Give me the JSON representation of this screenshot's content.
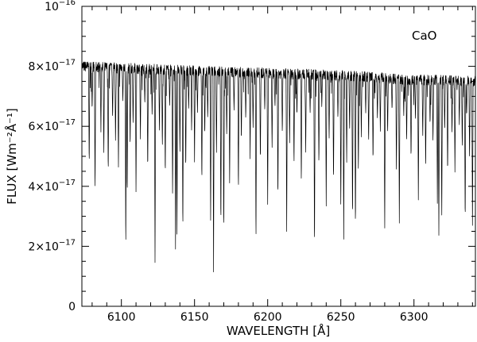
{
  "chart_data": {
    "type": "line",
    "title": "",
    "annotation": "CaO",
    "xlabel": "WAVELENGTH [Å]",
    "ylabel": "FLUX [Wm⁻²Å⁻¹]",
    "xlim": [
      6073,
      6342
    ],
    "ylim": [
      0,
      1e-16
    ],
    "x_ticks": [
      6100,
      6150,
      6200,
      6250,
      6300
    ],
    "x_tick_labels": [
      "6100",
      "6150",
      "6200",
      "6250",
      "6300"
    ],
    "y_ticks": [
      {
        "value": 0,
        "mantissa": "0",
        "exponent": ""
      },
      {
        "value": 2e-17,
        "mantissa": "2×10",
        "exponent": "−17"
      },
      {
        "value": 4e-17,
        "mantissa": "4×10",
        "exponent": "−17"
      },
      {
        "value": 6e-17,
        "mantissa": "6×10",
        "exponent": "−17"
      },
      {
        "value": 8e-17,
        "mantissa": "8×10",
        "exponent": "−17"
      },
      {
        "value": 1e-16,
        "mantissa": "10",
        "exponent": "−16"
      }
    ],
    "grid": false,
    "series": [
      {
        "line_color": "#000000",
        "continuum": [
          [
            6073,
            8e-17
          ],
          [
            6150,
            7.85e-17
          ],
          [
            6250,
            7.7e-17
          ],
          [
            6300,
            7.55e-17
          ],
          [
            6342,
            7.5e-17
          ]
        ],
        "absorption_lines": [
          [
            6078,
            4.6e-17
          ],
          [
            6080,
            6.5e-17
          ],
          [
            6082,
            3.7e-17
          ],
          [
            6086,
            5.8e-17
          ],
          [
            6088,
            5e-17
          ],
          [
            6091,
            4.3e-17
          ],
          [
            6094,
            6.2e-17
          ],
          [
            6096,
            5.4e-17
          ],
          [
            6098,
            4.6e-17
          ],
          [
            6101,
            6.8e-17
          ],
          [
            6103,
            1.7e-17
          ],
          [
            6104,
            3.5e-17
          ],
          [
            6106,
            5.2e-17
          ],
          [
            6108,
            6e-17
          ],
          [
            6110,
            3.7e-17
          ],
          [
            6113,
            5.5e-17
          ],
          [
            6116,
            6.7e-17
          ],
          [
            6118,
            4.4e-17
          ],
          [
            6121,
            6.3e-17
          ],
          [
            6123,
            1.3e-17
          ],
          [
            6126,
            5.8e-17
          ],
          [
            6128,
            5.2e-17
          ],
          [
            6130,
            4.2e-17
          ],
          [
            6133,
            6.6e-17
          ],
          [
            6135,
            3.6e-17
          ],
          [
            6137,
            1.9e-17
          ],
          [
            6138,
            2.3e-17
          ],
          [
            6140,
            5e-17
          ],
          [
            6142,
            2.3e-17
          ],
          [
            6144,
            4.4e-17
          ],
          [
            6146,
            6.5e-17
          ],
          [
            6148,
            5.8e-17
          ],
          [
            6150,
            4.8e-17
          ],
          [
            6152,
            6.4e-17
          ],
          [
            6155,
            4e-17
          ],
          [
            6157,
            5.6e-17
          ],
          [
            6159,
            6.2e-17
          ],
          [
            6161,
            2.7e-17
          ],
          [
            6163,
            1.1e-17
          ],
          [
            6165,
            5e-17
          ],
          [
            6168,
            2.5e-17
          ],
          [
            6170,
            2.2e-17
          ],
          [
            6172,
            5.6e-17
          ],
          [
            6174,
            4e-17
          ],
          [
            6177,
            6.5e-17
          ],
          [
            6180,
            3.7e-17
          ],
          [
            6182,
            5.4e-17
          ],
          [
            6185,
            6.2e-17
          ],
          [
            6188,
            4.9e-17
          ],
          [
            6190,
            5.9e-17
          ],
          [
            6192,
            2e-17
          ],
          [
            6195,
            4.7e-17
          ],
          [
            6198,
            6.5e-17
          ],
          [
            6200,
            3.3e-17
          ],
          [
            6203,
            5.2e-17
          ],
          [
            6205,
            6.6e-17
          ],
          [
            6207,
            3.4e-17
          ],
          [
            6210,
            5.7e-17
          ],
          [
            6213,
            2.4e-17
          ],
          [
            6215,
            5.4e-17
          ],
          [
            6218,
            4.6e-17
          ],
          [
            6220,
            6.3e-17
          ],
          [
            6223,
            4e-17
          ],
          [
            6226,
            5.1e-17
          ],
          [
            6229,
            6.4e-17
          ],
          [
            6232,
            1.7e-17
          ],
          [
            6235,
            4.6e-17
          ],
          [
            6237,
            6.6e-17
          ],
          [
            6240,
            3.3e-17
          ],
          [
            6242,
            5.5e-17
          ],
          [
            6245,
            4e-17
          ],
          [
            6248,
            6.2e-17
          ],
          [
            6250,
            3.2e-17
          ],
          [
            6252,
            2.2e-17
          ],
          [
            6254,
            4.7e-17
          ],
          [
            6256,
            5.8e-17
          ],
          [
            6258,
            2.7e-17
          ],
          [
            6260,
            2.4e-17
          ],
          [
            6262,
            4.4e-17
          ],
          [
            6264,
            5.6e-17
          ],
          [
            6267,
            6.4e-17
          ],
          [
            6269,
            5.4e-17
          ],
          [
            6272,
            4.7e-17
          ],
          [
            6275,
            6.2e-17
          ],
          [
            6277,
            5.8e-17
          ],
          [
            6280,
            2.4e-17
          ],
          [
            6282,
            5.7e-17
          ],
          [
            6285,
            6.5e-17
          ],
          [
            6288,
            4.4e-17
          ],
          [
            6290,
            2.7e-17
          ],
          [
            6293,
            6.3e-17
          ],
          [
            6295,
            5.4e-17
          ],
          [
            6298,
            4.8e-17
          ],
          [
            6301,
            6.2e-17
          ],
          [
            6303,
            3.5e-17
          ],
          [
            6306,
            5.6e-17
          ],
          [
            6308,
            4.5e-17
          ],
          [
            6311,
            6e-17
          ],
          [
            6313,
            5.4e-17
          ],
          [
            6316,
            3.4e-17
          ],
          [
            6317,
            2.3e-17
          ],
          [
            6319,
            2.8e-17
          ],
          [
            6321,
            5.8e-17
          ],
          [
            6323,
            4.3e-17
          ],
          [
            6326,
            5.7e-17
          ],
          [
            6328,
            4.4e-17
          ],
          [
            6331,
            6e-17
          ],
          [
            6333,
            5.2e-17
          ],
          [
            6335,
            2.6e-17
          ],
          [
            6336,
            6.3e-17
          ],
          [
            6338,
            4.8e-17
          ],
          [
            6340,
            2.5e-17
          ]
        ]
      }
    ]
  }
}
